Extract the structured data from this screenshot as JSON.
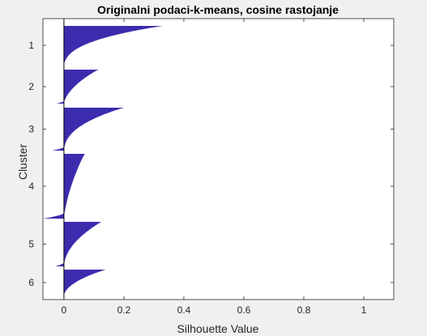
{
  "chart_data": {
    "type": "bar",
    "orientation": "horizontal-silhouette",
    "title": "Originalni podaci-k-means, cosine rastojanje",
    "xlabel": "Silhouette Value",
    "ylabel": "Cluster",
    "xlim": [
      -0.07,
      1.1
    ],
    "xticks": [
      0,
      0.2,
      0.4,
      0.6,
      0.8,
      1
    ],
    "xtick_labels": [
      "0",
      "0.2",
      "0.4",
      "0.6",
      "0.8",
      "1"
    ],
    "bar_color": "#3b2cae",
    "grid": false,
    "clusters": [
      {
        "label": "1",
        "max": 0.33,
        "min": 0.0,
        "knee": 0.05,
        "shape": 2.6
      },
      {
        "label": "2",
        "max": 0.115,
        "min": -0.025,
        "knee": 0.02,
        "shape": 1.8
      },
      {
        "label": "3",
        "max": 0.2,
        "min": -0.04,
        "knee": 0.02,
        "shape": 2.4
      },
      {
        "label": "4",
        "max": 0.07,
        "min": -0.07,
        "knee": 0.02,
        "shape": 1.6
      },
      {
        "label": "5",
        "max": 0.125,
        "min": -0.03,
        "knee": 0.01,
        "shape": 2.0
      },
      {
        "label": "6",
        "max": 0.14,
        "min": 0.0,
        "knee": 0.02,
        "shape": 2.0
      }
    ]
  }
}
